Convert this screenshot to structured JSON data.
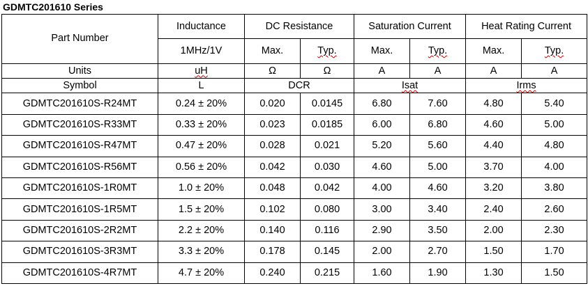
{
  "title": "GDMTC201610 Series",
  "header": {
    "part_number": "Part Number",
    "inductance": "Inductance",
    "dc_resistance": "DC Resistance",
    "saturation_current": "Saturation Current",
    "heat_rating_current": "Heat Rating Current"
  },
  "subheader": {
    "inductance": "1MHz/1V",
    "dcr_max": "Max.",
    "dcr_typ": "Typ.",
    "isat_max": "Max.",
    "isat_typ": "Typ.",
    "irms_max": "Max.",
    "irms_typ": "Typ."
  },
  "units": {
    "label": "Units",
    "inductance": "uH",
    "dcr_max": "Ω",
    "dcr_typ": "Ω",
    "isat_max": "A",
    "isat_typ": "A",
    "irms_max": "A",
    "irms_typ": "A"
  },
  "symbol": {
    "label": "Symbol",
    "inductance": "L",
    "dcr": "DCR",
    "isat": "Isat",
    "irms": "Irms"
  },
  "rows": [
    {
      "part": "GDMTC201610S-R24MT",
      "inductance": "0.24 ± 20%",
      "dcr_max": "0.020",
      "dcr_typ": "0.0145",
      "isat_max": "6.80",
      "isat_typ": "7.60",
      "irms_max": "4.80",
      "irms_typ": "5.40"
    },
    {
      "part": "GDMTC201610S-R33MT",
      "inductance": "0.33 ± 20%",
      "dcr_max": "0.023",
      "dcr_typ": "0.0185",
      "isat_max": "6.00",
      "isat_typ": "6.80",
      "irms_max": "4.60",
      "irms_typ": "5.00"
    },
    {
      "part": "GDMTC201610S-R47MT",
      "inductance": "0.47 ± 20%",
      "dcr_max": "0.028",
      "dcr_typ": "0.021",
      "isat_max": "5.20",
      "isat_typ": "5.60",
      "irms_max": "4.40",
      "irms_typ": "4.80"
    },
    {
      "part": "GDMTC201610S-R56MT",
      "inductance": "0.56 ± 20%",
      "dcr_max": "0.042",
      "dcr_typ": "0.030",
      "isat_max": "4.60",
      "isat_typ": "5.00",
      "irms_max": "3.70",
      "irms_typ": "4.00"
    },
    {
      "part": "GDMTC201610S-1R0MT",
      "inductance": "1.0 ± 20%",
      "dcr_max": "0.048",
      "dcr_typ": "0.042",
      "isat_max": "4.00",
      "isat_typ": "4.60",
      "irms_max": "3.20",
      "irms_typ": "3.80"
    },
    {
      "part": "GDMTC201610S-1R5MT",
      "inductance": "1.5 ± 20%",
      "dcr_max": "0.102",
      "dcr_typ": "0.080",
      "isat_max": "3.00",
      "isat_typ": "3.40",
      "irms_max": "2.40",
      "irms_typ": "2.60"
    },
    {
      "part": "GDMTC201610S-2R2MT",
      "inductance": "2.2 ± 20%",
      "dcr_max": "0.140",
      "dcr_typ": "0.116",
      "isat_max": "2.90",
      "isat_typ": "3.50",
      "irms_max": "2.00",
      "irms_typ": "2.30"
    },
    {
      "part": "GDMTC201610S-3R3MT",
      "inductance": "3.3 ± 20%",
      "dcr_max": "0.178",
      "dcr_typ": "0.145",
      "isat_max": "2.00",
      "isat_typ": "2.70",
      "irms_max": "1.50",
      "irms_typ": "1.70"
    },
    {
      "part": "GDMTC201610S-4R7MT",
      "inductance": "4.7 ± 20%",
      "dcr_max": "0.240",
      "dcr_typ": "0.215",
      "isat_max": "1.60",
      "isat_typ": "1.90",
      "irms_max": "1.30",
      "irms_typ": "1.50"
    }
  ]
}
